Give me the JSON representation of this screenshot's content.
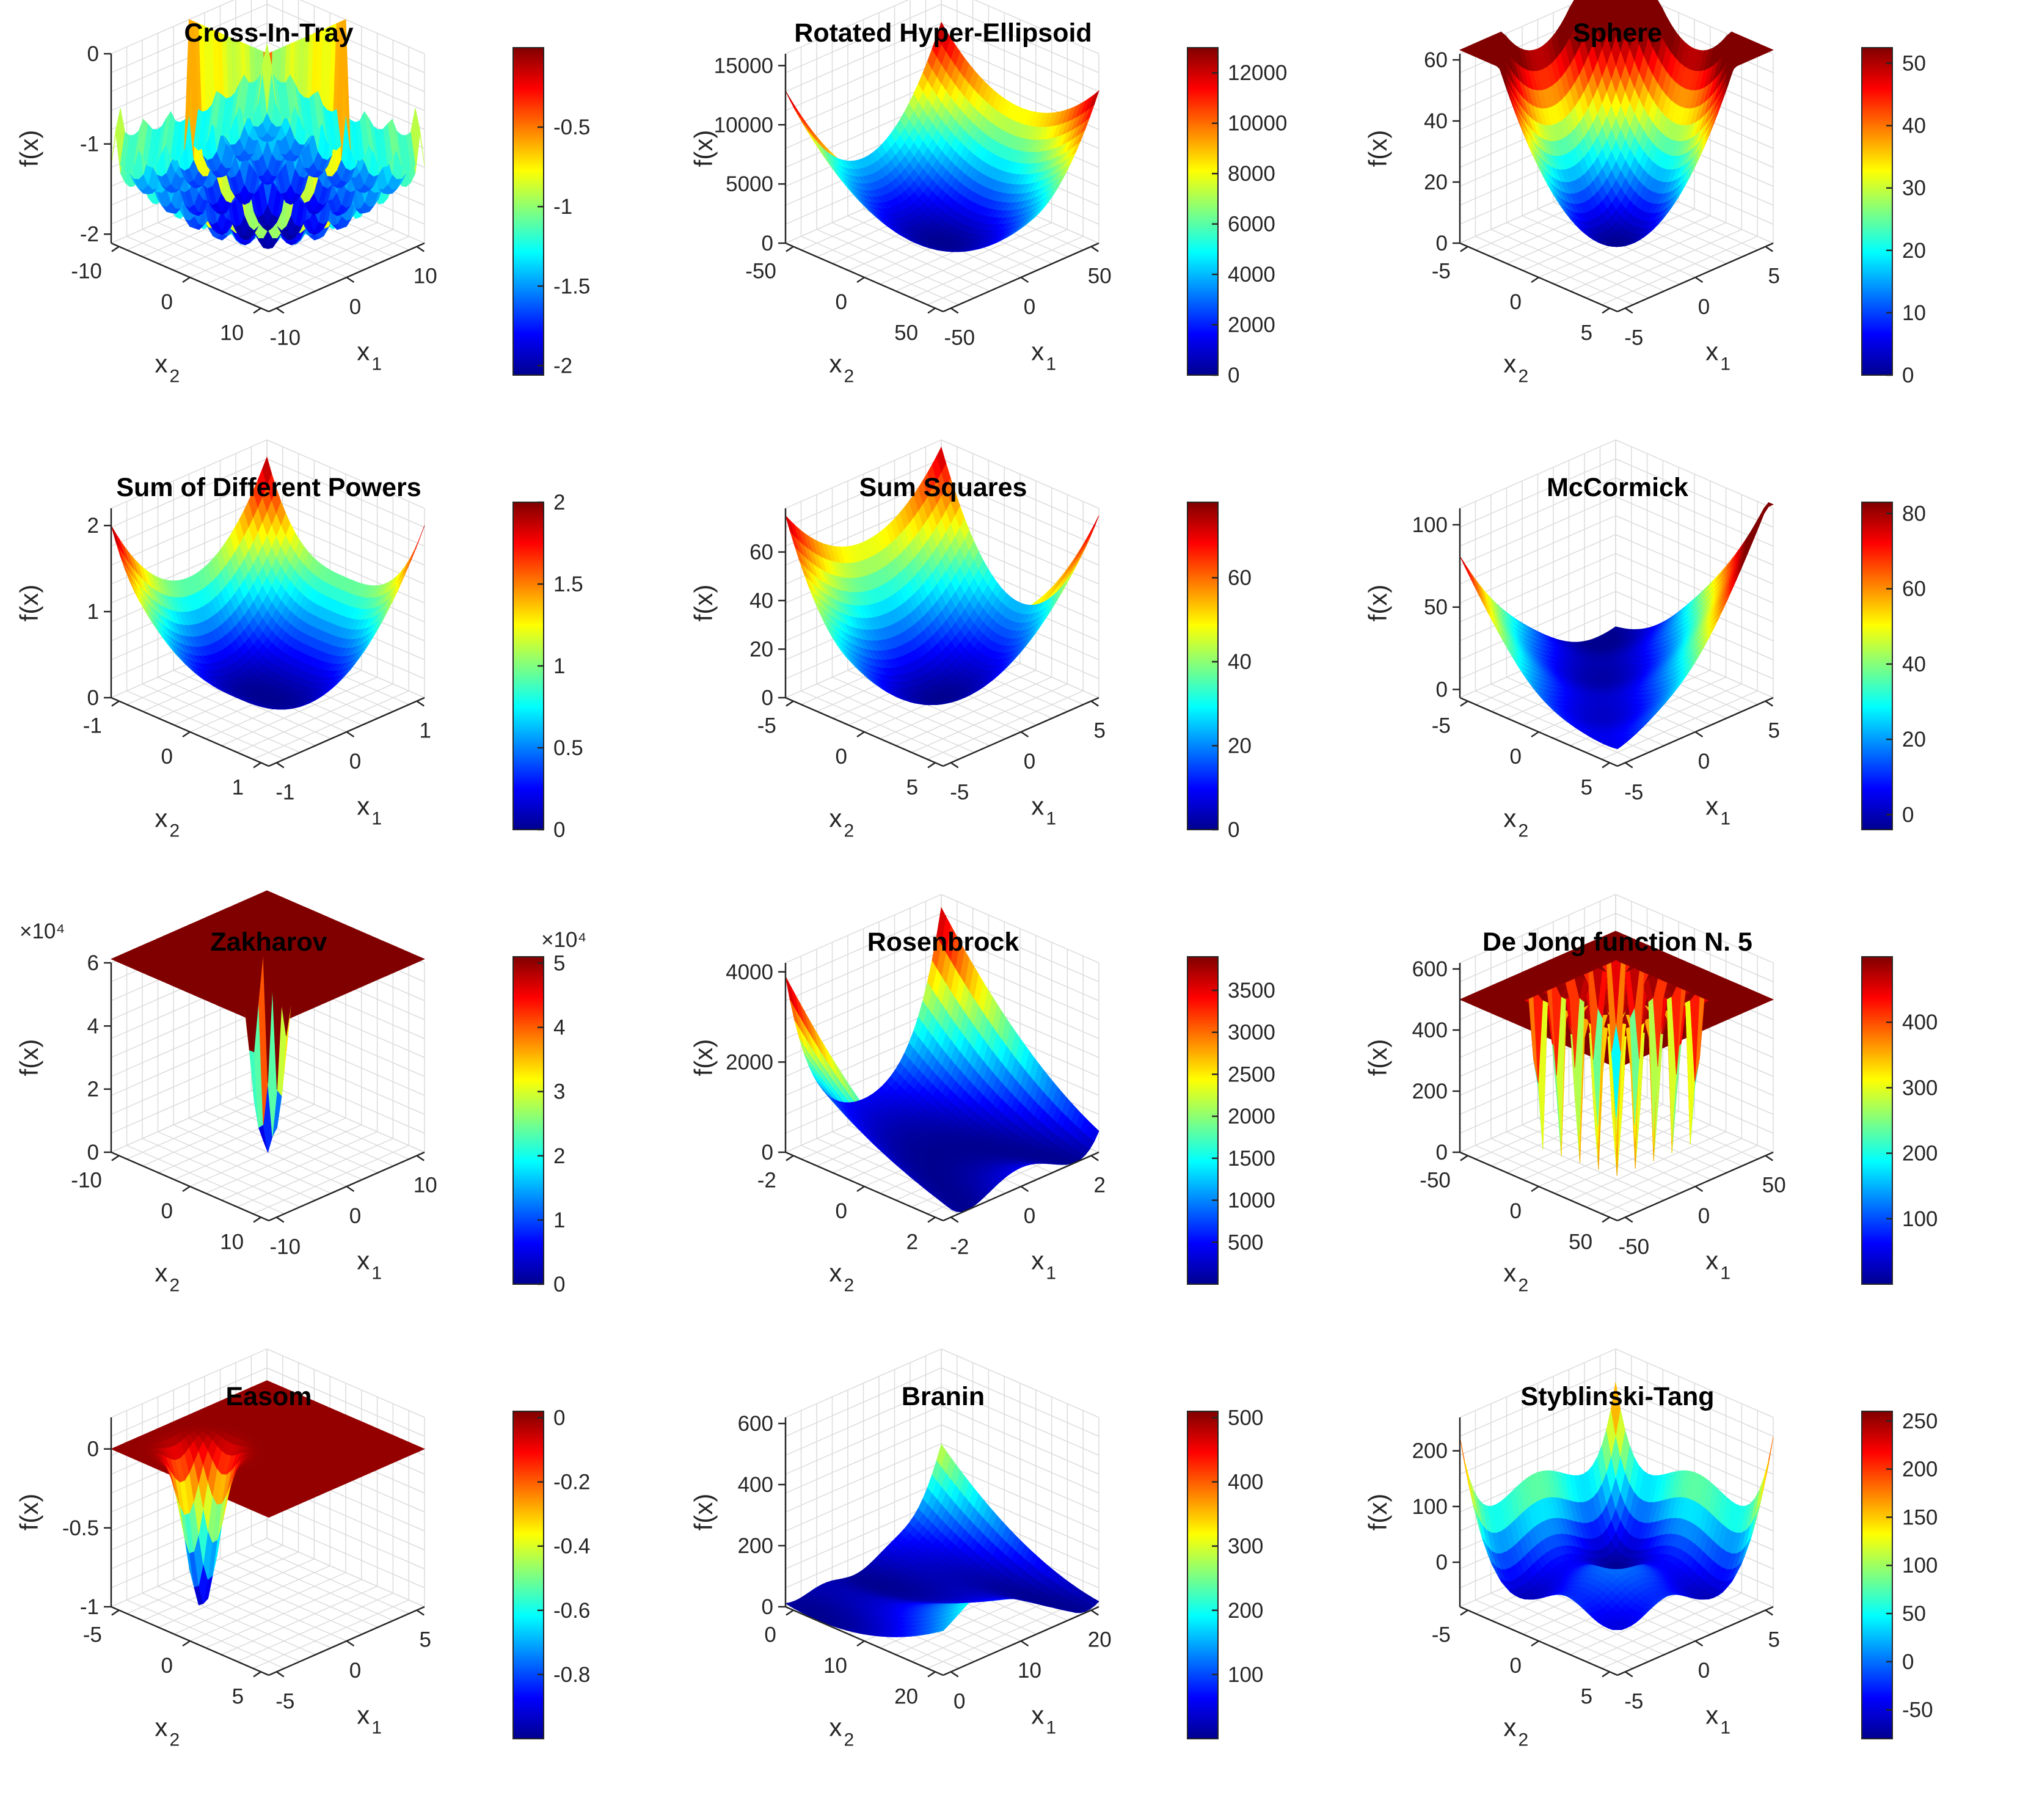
{
  "colors": {
    "colormap": [
      "#00008f",
      "#0000ff",
      "#00ffff",
      "#ffff00",
      "#ff0000",
      "#800000"
    ],
    "axis": "#262626",
    "grid": "#dcdcdc",
    "background": "#ffffff"
  },
  "chart_data": [
    {
      "type": "surface",
      "title": "Cross-In-Tray",
      "function": "cross-in-tray",
      "x1_ticks": [
        "-10",
        "0",
        "10"
      ],
      "x2_ticks": [
        "-10",
        "0",
        "10"
      ],
      "z_ticks": [
        "-2",
        "-1",
        "0"
      ],
      "colorbar_ticks": [
        "-2",
        "-1.5",
        "-1",
        "-0.5"
      ],
      "zlim": [
        -2.1,
        0
      ],
      "clim": [
        -2.06,
        0
      ],
      "xlabel": "x",
      "xlabel_sub": "1",
      "ylabel": "x",
      "ylabel_sub": "2",
      "zlabel": "f(x)",
      "exponent": ""
    },
    {
      "type": "surface",
      "title": "Rotated Hyper-Ellipsoid",
      "function": "rotated-hyper-ellipsoid",
      "x1_ticks": [
        "-50",
        "0",
        "50"
      ],
      "x2_ticks": [
        "-50",
        "0",
        "50"
      ],
      "z_ticks": [
        "0",
        "5000",
        "10000",
        "15000"
      ],
      "colorbar_ticks": [
        "0",
        "2000",
        "4000",
        "6000",
        "8000",
        "10000",
        "12000"
      ],
      "zlim": [
        0,
        16000
      ],
      "clim": [
        0,
        13000
      ],
      "xlabel": "x",
      "xlabel_sub": "1",
      "ylabel": "x",
      "ylabel_sub": "2",
      "zlabel": "f(x)",
      "exponent": ""
    },
    {
      "type": "surface",
      "title": "Sphere",
      "function": "sphere",
      "x1_ticks": [
        "-5",
        "0",
        "5"
      ],
      "x2_ticks": [
        "-5",
        "0",
        "5"
      ],
      "z_ticks": [
        "0",
        "20",
        "40",
        "60"
      ],
      "colorbar_ticks": [
        "0",
        "10",
        "20",
        "30",
        "40",
        "50"
      ],
      "zlim": [
        0,
        62
      ],
      "clim": [
        0,
        52.5
      ],
      "xlabel": "x",
      "xlabel_sub": "1",
      "ylabel": "x",
      "ylabel_sub": "2",
      "zlabel": "f(x)",
      "exponent": ""
    },
    {
      "type": "surface",
      "title": "Sum of Different Powers",
      "function": "sum-of-different-powers",
      "x1_ticks": [
        "-1",
        "0",
        "1"
      ],
      "x2_ticks": [
        "-1",
        "0",
        "1"
      ],
      "z_ticks": [
        "0",
        "1",
        "2"
      ],
      "colorbar_ticks": [
        "0",
        "0.5",
        "1",
        "1.5",
        "2"
      ],
      "zlim": [
        0,
        2.2
      ],
      "clim": [
        0,
        2
      ],
      "xlabel": "x",
      "xlabel_sub": "1",
      "ylabel": "x",
      "ylabel_sub": "2",
      "zlabel": "f(x)",
      "exponent": ""
    },
    {
      "type": "surface",
      "title": "Sum Squares",
      "function": "sum-squares",
      "x1_ticks": [
        "-5",
        "0",
        "5"
      ],
      "x2_ticks": [
        "-5",
        "0",
        "5"
      ],
      "z_ticks": [
        "0",
        "20",
        "40",
        "60"
      ],
      "colorbar_ticks": [
        "0",
        "20",
        "40",
        "60"
      ],
      "zlim": [
        0,
        78
      ],
      "clim": [
        0,
        78
      ],
      "xlabel": "x",
      "xlabel_sub": "1",
      "ylabel": "x",
      "ylabel_sub": "2",
      "zlabel": "f(x)",
      "exponent": ""
    },
    {
      "type": "surface",
      "title": "McCormick",
      "function": "mccormick",
      "x1_ticks": [
        "-5",
        "0",
        "5"
      ],
      "x2_ticks": [
        "-5",
        "0",
        "5"
      ],
      "z_ticks": [
        "0",
        "50",
        "100"
      ],
      "colorbar_ticks": [
        "0",
        "20",
        "40",
        "60",
        "80"
      ],
      "zlim": [
        -5,
        110
      ],
      "clim": [
        -4,
        83
      ],
      "xlabel": "x",
      "xlabel_sub": "1",
      "ylabel": "x",
      "ylabel_sub": "2",
      "zlabel": "f(x)",
      "exponent": ""
    },
    {
      "type": "surface",
      "title": "Zakharov",
      "function": "zakharov",
      "x1_ticks": [
        "-10",
        "0",
        "10"
      ],
      "x2_ticks": [
        "-10",
        "0",
        "10"
      ],
      "z_ticks": [
        "0",
        "2",
        "4",
        "6"
      ],
      "colorbar_ticks": [
        "0",
        "1",
        "2",
        "3",
        "4",
        "5"
      ],
      "zlim": [
        0,
        6
      ],
      "clim": [
        0,
        5.1
      ],
      "xlabel": "x",
      "xlabel_sub": "1",
      "ylabel": "x",
      "ylabel_sub": "2",
      "zlabel": "f(x)",
      "exponent": "×10⁴"
    },
    {
      "type": "surface",
      "title": "Rosenbrock",
      "function": "rosenbrock",
      "x1_ticks": [
        "-2",
        "0",
        "2"
      ],
      "x2_ticks": [
        "-2",
        "0",
        "2"
      ],
      "z_ticks": [
        "0",
        "2000",
        "4000"
      ],
      "colorbar_ticks": [
        "500",
        "1000",
        "1500",
        "2000",
        "2500",
        "3000",
        "3500"
      ],
      "zlim": [
        0,
        4200
      ],
      "clim": [
        0,
        3900
      ],
      "xlabel": "x",
      "xlabel_sub": "1",
      "ylabel": "x",
      "ylabel_sub": "2",
      "zlabel": "f(x)",
      "exponent": ""
    },
    {
      "type": "surface",
      "title": "De Jong function N. 5",
      "function": "de-jong-n5",
      "x1_ticks": [
        "-50",
        "0",
        "50"
      ],
      "x2_ticks": [
        "-50",
        "0",
        "50"
      ],
      "z_ticks": [
        "0",
        "200",
        "400",
        "600"
      ],
      "colorbar_ticks": [
        "100",
        "200",
        "300",
        "400"
      ],
      "zlim": [
        0,
        620
      ],
      "clim": [
        0,
        500
      ],
      "xlabel": "x",
      "xlabel_sub": "1",
      "ylabel": "x",
      "ylabel_sub": "2",
      "zlabel": "f(x)",
      "exponent": ""
    },
    {
      "type": "surface",
      "title": "Easom",
      "function": "easom",
      "x1_ticks": [
        "-5",
        "0",
        "5"
      ],
      "x2_ticks": [
        "-5",
        "0",
        "5"
      ],
      "z_ticks": [
        "-1",
        "-0.5",
        "0"
      ],
      "colorbar_ticks": [
        "-0.8",
        "-0.6",
        "-0.4",
        "-0.2",
        "0"
      ],
      "zlim": [
        -1,
        0.2
      ],
      "clim": [
        -1,
        0.02
      ],
      "xlabel": "x",
      "xlabel_sub": "1",
      "ylabel": "x",
      "ylabel_sub": "2",
      "zlabel": "f(x)",
      "exponent": ""
    },
    {
      "type": "surface",
      "title": "Branin",
      "function": "branin",
      "x1_ticks": [
        "0",
        "10",
        "20"
      ],
      "x2_ticks": [
        "0",
        "10",
        "20"
      ],
      "z_ticks": [
        "0",
        "200",
        "400",
        "600"
      ],
      "colorbar_ticks": [
        "100",
        "200",
        "300",
        "400",
        "500"
      ],
      "zlim": [
        0,
        620
      ],
      "clim": [
        0,
        510
      ],
      "xlabel": "x",
      "xlabel_sub": "1",
      "ylabel": "x",
      "ylabel_sub": "2",
      "zlabel": "f(x)",
      "exponent": ""
    },
    {
      "type": "surface",
      "title": "Styblinski-Tang",
      "function": "styblinski-tang",
      "x1_ticks": [
        "-5",
        "0",
        "5"
      ],
      "x2_ticks": [
        "-5",
        "0",
        "5"
      ],
      "z_ticks": [
        "0",
        "100",
        "200"
      ],
      "colorbar_ticks": [
        "-50",
        "0",
        "50",
        "100",
        "150",
        "200",
        "250"
      ],
      "zlim": [
        -80,
        260
      ],
      "clim": [
        -80,
        260
      ],
      "xlabel": "x",
      "xlabel_sub": "1",
      "ylabel": "x",
      "ylabel_sub": "2",
      "zlabel": "f(x)",
      "exponent": ""
    }
  ]
}
